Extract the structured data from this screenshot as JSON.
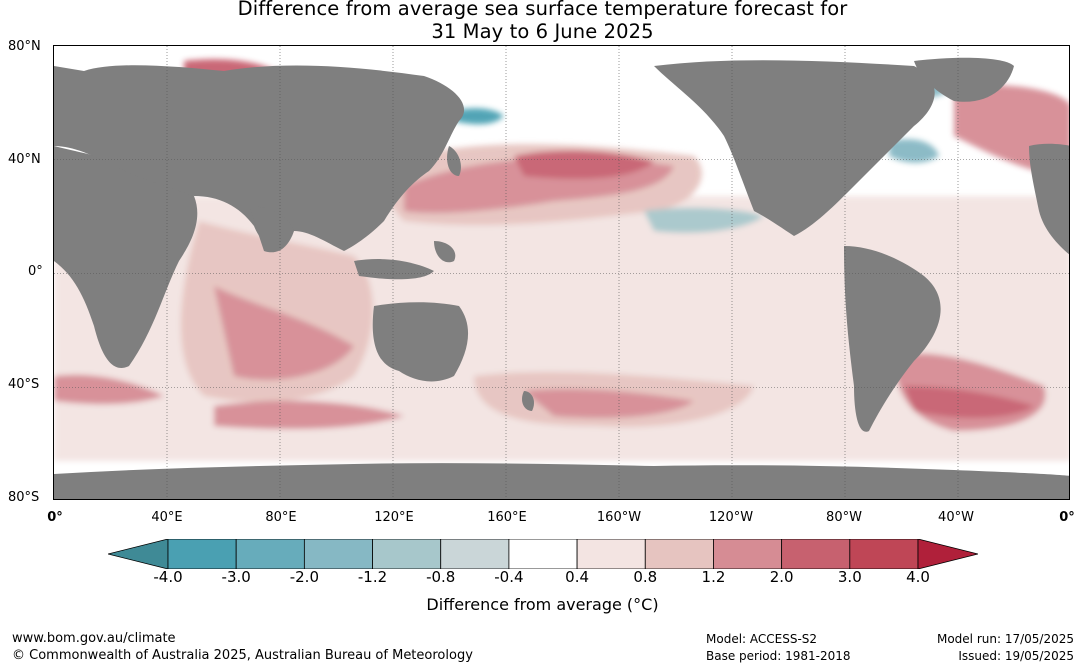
{
  "title_line1": "Difference from average sea surface temperature forecast for",
  "title_line2": "31 May to 6 June 2025",
  "lat_labels": [
    "80°N",
    "40°N",
    "0°",
    "40°S",
    "80°S"
  ],
  "lon_labels": [
    "0°",
    "40°E",
    "80°E",
    "120°E",
    "160°E",
    "160°W",
    "120°W",
    "80°W",
    "40°W",
    "0°"
  ],
  "colorbar": {
    "ticks": [
      "-4.0",
      "-3.0",
      "-2.0",
      "-1.2",
      "-0.8",
      "-0.4",
      "0.4",
      "0.8",
      "1.2",
      "2.0",
      "3.0",
      "4.0"
    ],
    "colors": [
      "#3f8a96",
      "#4aa0b2",
      "#67acbb",
      "#86b8c4",
      "#a7c7cb",
      "#cad6d8",
      "#ffffff",
      "#f3e4e2",
      "#e6c4c0",
      "#d68c94",
      "#c7616f",
      "#bf4656",
      "#b0203a"
    ],
    "label": "Difference from average (°C)"
  },
  "footer": {
    "website": "www.bom.gov.au/climate",
    "copyright": "© Commonwealth of Australia 2025, Australian Bureau of Meteorology",
    "model": "Model: ACCESS-S2",
    "base_period": "Base period: 1981-2018",
    "model_run": "Model run: 17/05/2025",
    "issued": "Issued: 19/05/2025"
  },
  "colors": {
    "land": "#7f7f7f",
    "ocean_neutral": "#ffffff",
    "grid": "#555555"
  }
}
